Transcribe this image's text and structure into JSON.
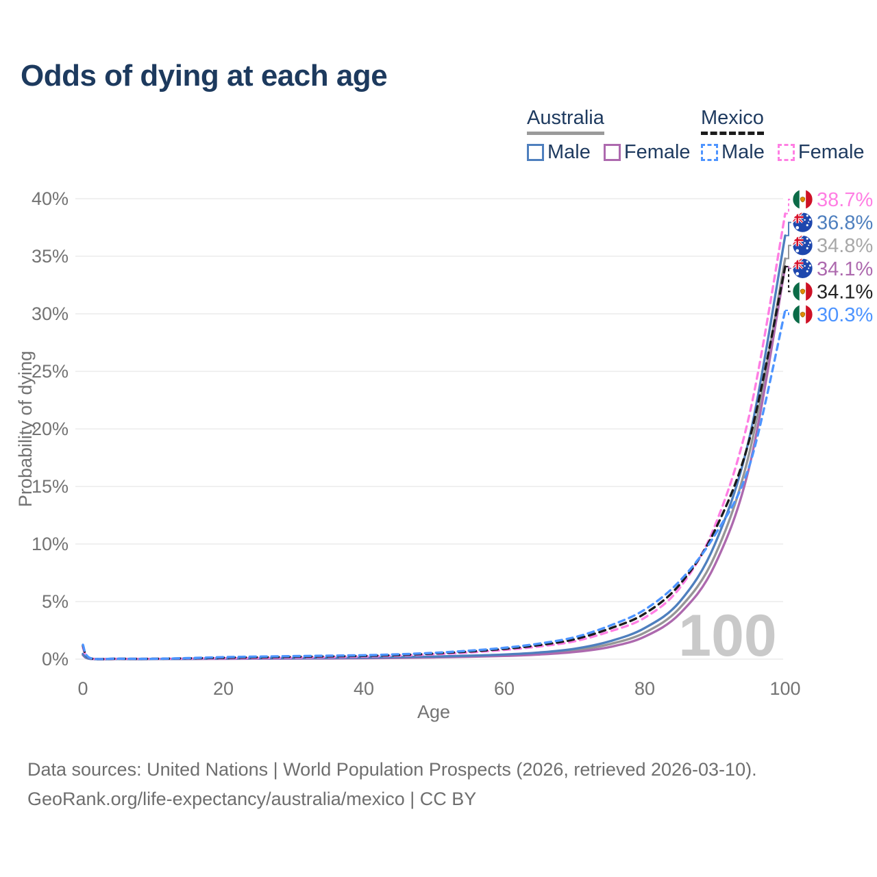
{
  "title": "Odds of dying at each age",
  "age_indicator": "100",
  "legend": {
    "australia": {
      "label": "Australia",
      "male": "Male",
      "female": "Female"
    },
    "mexico": {
      "label": "Mexico",
      "male": "Male",
      "female": "Female"
    }
  },
  "footer": {
    "line1": "Data sources: United Nations | World Population Prospects (2026, retrieved 2026-03-10).",
    "line2": "GeoRank.org/life-expectancy/australia/mexico | CC BY"
  },
  "colors": {
    "australia_male": "#4e7fbe",
    "australia_female": "#ad69ae",
    "australia_both": "#969696",
    "mexico_male": "#4d94ff",
    "mexico_female": "#ff7ee3",
    "mexico_both": "#1b1b1b",
    "title_text": "#1d3a5e",
    "axis_text": "#737373",
    "gridline": "#ececec",
    "watermark": "#c9c9c9"
  },
  "chart_data": {
    "type": "line",
    "title": "Odds of dying at each age",
    "xlabel": "Age",
    "ylabel": "Probability of dying",
    "xlim": [
      0,
      100
    ],
    "ylim": [
      0,
      40
    ],
    "x_ticks": [
      0,
      20,
      40,
      60,
      80,
      100
    ],
    "y_tick_labels": [
      "0%",
      "5%",
      "10%",
      "15%",
      "20%",
      "25%",
      "30%",
      "35%",
      "40%"
    ],
    "grid": "horizontal",
    "legend_position": "top-right",
    "x": [
      0,
      1,
      5,
      10,
      15,
      20,
      25,
      30,
      35,
      40,
      45,
      50,
      55,
      60,
      65,
      70,
      75,
      80,
      85,
      90,
      95,
      100
    ],
    "series": [
      {
        "name": "Australia",
        "country": "australia",
        "sex": "both",
        "style": "solid",
        "color": "#969696",
        "flag": "australia",
        "end_label": "34.8%",
        "label_color": "#a8a8a8",
        "values": [
          0.4,
          0.03,
          0.01,
          0.01,
          0.025,
          0.045,
          0.055,
          0.065,
          0.08,
          0.1,
          0.14,
          0.18,
          0.25,
          0.34,
          0.49,
          0.76,
          1.3,
          2.3,
          4.45,
          9.0,
          18.2,
          34.8
        ]
      },
      {
        "name": "Australia Female",
        "country": "australia",
        "sex": "female",
        "style": "solid",
        "color": "#ad69ae",
        "flag": "australia",
        "end_label": "34.1%",
        "label_color": "#ad69ae",
        "values": [
          0.35,
          0.03,
          0.01,
          0.01,
          0.02,
          0.03,
          0.04,
          0.05,
          0.06,
          0.08,
          0.11,
          0.15,
          0.21,
          0.28,
          0.4,
          0.62,
          1.05,
          1.95,
          3.95,
          8.2,
          17.0,
          34.1
        ]
      },
      {
        "name": "Australia Male",
        "country": "australia",
        "sex": "male",
        "style": "solid",
        "color": "#4e7fbe",
        "flag": "australia",
        "end_label": "36.8%",
        "label_color": "#4e7fbe",
        "values": [
          0.45,
          0.03,
          0.01,
          0.01,
          0.03,
          0.06,
          0.07,
          0.08,
          0.1,
          0.13,
          0.17,
          0.22,
          0.3,
          0.4,
          0.58,
          0.9,
          1.55,
          2.7,
          5.0,
          10.0,
          19.5,
          36.8
        ]
      },
      {
        "name": "Mexico Female",
        "country": "mexico",
        "sex": "female",
        "style": "dashed",
        "color": "#ff7ee3",
        "flag": "mexico",
        "end_label": "38.7%",
        "label_color": "#ff7ee3",
        "values": [
          1.0,
          0.08,
          0.03,
          0.025,
          0.05,
          0.08,
          0.1,
          0.13,
          0.17,
          0.22,
          0.3,
          0.42,
          0.58,
          0.8,
          1.1,
          1.55,
          2.4,
          3.6,
          6.2,
          11.6,
          21.5,
          38.7
        ]
      },
      {
        "name": "Mexico",
        "country": "mexico",
        "sex": "both",
        "style": "dashed",
        "color": "#1b1b1b",
        "flag": "mexico",
        "end_label": "34.1%",
        "label_color": "#222222",
        "values": [
          1.15,
          0.09,
          0.035,
          0.028,
          0.07,
          0.12,
          0.16,
          0.2,
          0.24,
          0.28,
          0.36,
          0.49,
          0.66,
          0.89,
          1.22,
          1.72,
          2.65,
          3.95,
          6.5,
          11.2,
          19.3,
          34.1
        ]
      },
      {
        "name": "Mexico Male",
        "country": "mexico",
        "sex": "male",
        "style": "dashed",
        "color": "#4d94ff",
        "flag": "mexico",
        "end_label": "30.3%",
        "label_color": "#4d94ff",
        "values": [
          1.25,
          0.1,
          0.04,
          0.03,
          0.09,
          0.17,
          0.22,
          0.26,
          0.3,
          0.34,
          0.42,
          0.55,
          0.73,
          0.98,
          1.35,
          1.9,
          2.9,
          4.3,
          6.8,
          10.8,
          17.0,
          30.3
        ]
      }
    ]
  }
}
